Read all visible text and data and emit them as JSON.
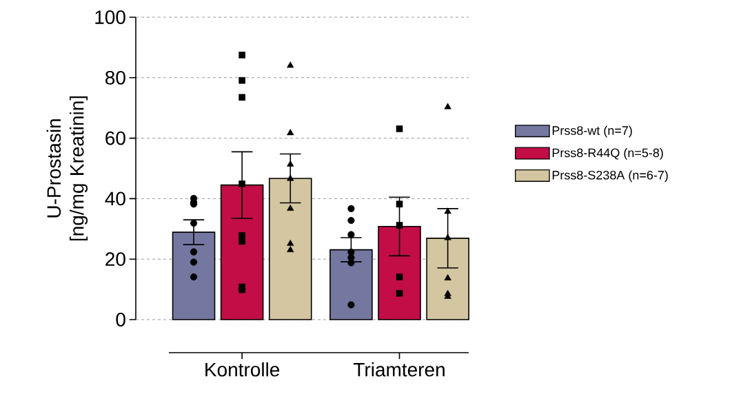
{
  "chart_data": {
    "type": "bar",
    "ylabel": "U-Prostasin [ng/mg Kreatinin]",
    "categories": [
      "Kontrolle",
      "Triamteren"
    ],
    "series": [
      {
        "name": "Prss8-wt (n=7)",
        "color": "#7477a0",
        "values": [
          28.9,
          23.1
        ],
        "errors": [
          4.1,
          4.0
        ]
      },
      {
        "name": "Prss8-R44Q (n=5-8)",
        "color": "#c20d46",
        "values": [
          44.5,
          30.8
        ],
        "errors": [
          11.0,
          9.7
        ]
      },
      {
        "name": "Prss8-S238A (n=6-7)",
        "color": "#d4c6a0",
        "values": [
          46.7,
          26.9
        ],
        "errors": [
          8.1,
          9.8
        ]
      },
      {
        "type": "scatter",
        "marker": "circle",
        "color": "#000000",
        "x": [
          "Kontrolle",
          "Kontrolle",
          "Kontrolle",
          "Kontrolle",
          "Kontrolle",
          "Kontrolle",
          "Kontrolle",
          "Triamteren",
          "Triamteren",
          "Triamteren",
          "Triamteren",
          "Triamteren",
          "Triamteren",
          "Triamteren"
        ],
        "values": [
          40.1,
          38.2,
          38.8,
          31.9,
          22.4,
          19.0,
          14.1,
          36.7,
          32.8,
          28.1,
          22.3,
          20.5,
          18.8,
          4.9
        ]
      },
      {
        "type": "scatter",
        "marker": "square",
        "color": "#000000",
        "x": [
          "Kontrolle",
          "Kontrolle",
          "Kontrolle",
          "Kontrolle",
          "Kontrolle",
          "Kontrolle",
          "Kontrolle",
          "Kontrolle",
          "Triamteren",
          "Triamteren",
          "Triamteren",
          "Triamteren",
          "Triamteren"
        ],
        "values": [
          87.5,
          79.1,
          73.5,
          44.9,
          27.8,
          25.9,
          9.9,
          10.8,
          63.1,
          38.2,
          31.2,
          14.1,
          8.7
        ]
      },
      {
        "type": "scatter",
        "marker": "triangle",
        "color": "#000000",
        "x": [
          "Kontrolle",
          "Kontrolle",
          "Kontrolle",
          "Kontrolle",
          "Kontrolle",
          "Kontrolle",
          "Kontrolle",
          "Triamteren",
          "Triamteren",
          "Triamteren",
          "Triamteren",
          "Triamteren",
          "Triamteren"
        ],
        "values": [
          84.0,
          61.7,
          51.3,
          46.6,
          36.7,
          25.1,
          23.0,
          70.3,
          35.7,
          27.0,
          13.7,
          7.6,
          8.5
        ]
      }
    ],
    "ylim": [
      0,
      100
    ],
    "yticks": [
      0,
      20,
      40,
      60,
      80,
      100
    ],
    "grid": "y",
    "legend": "right"
  }
}
